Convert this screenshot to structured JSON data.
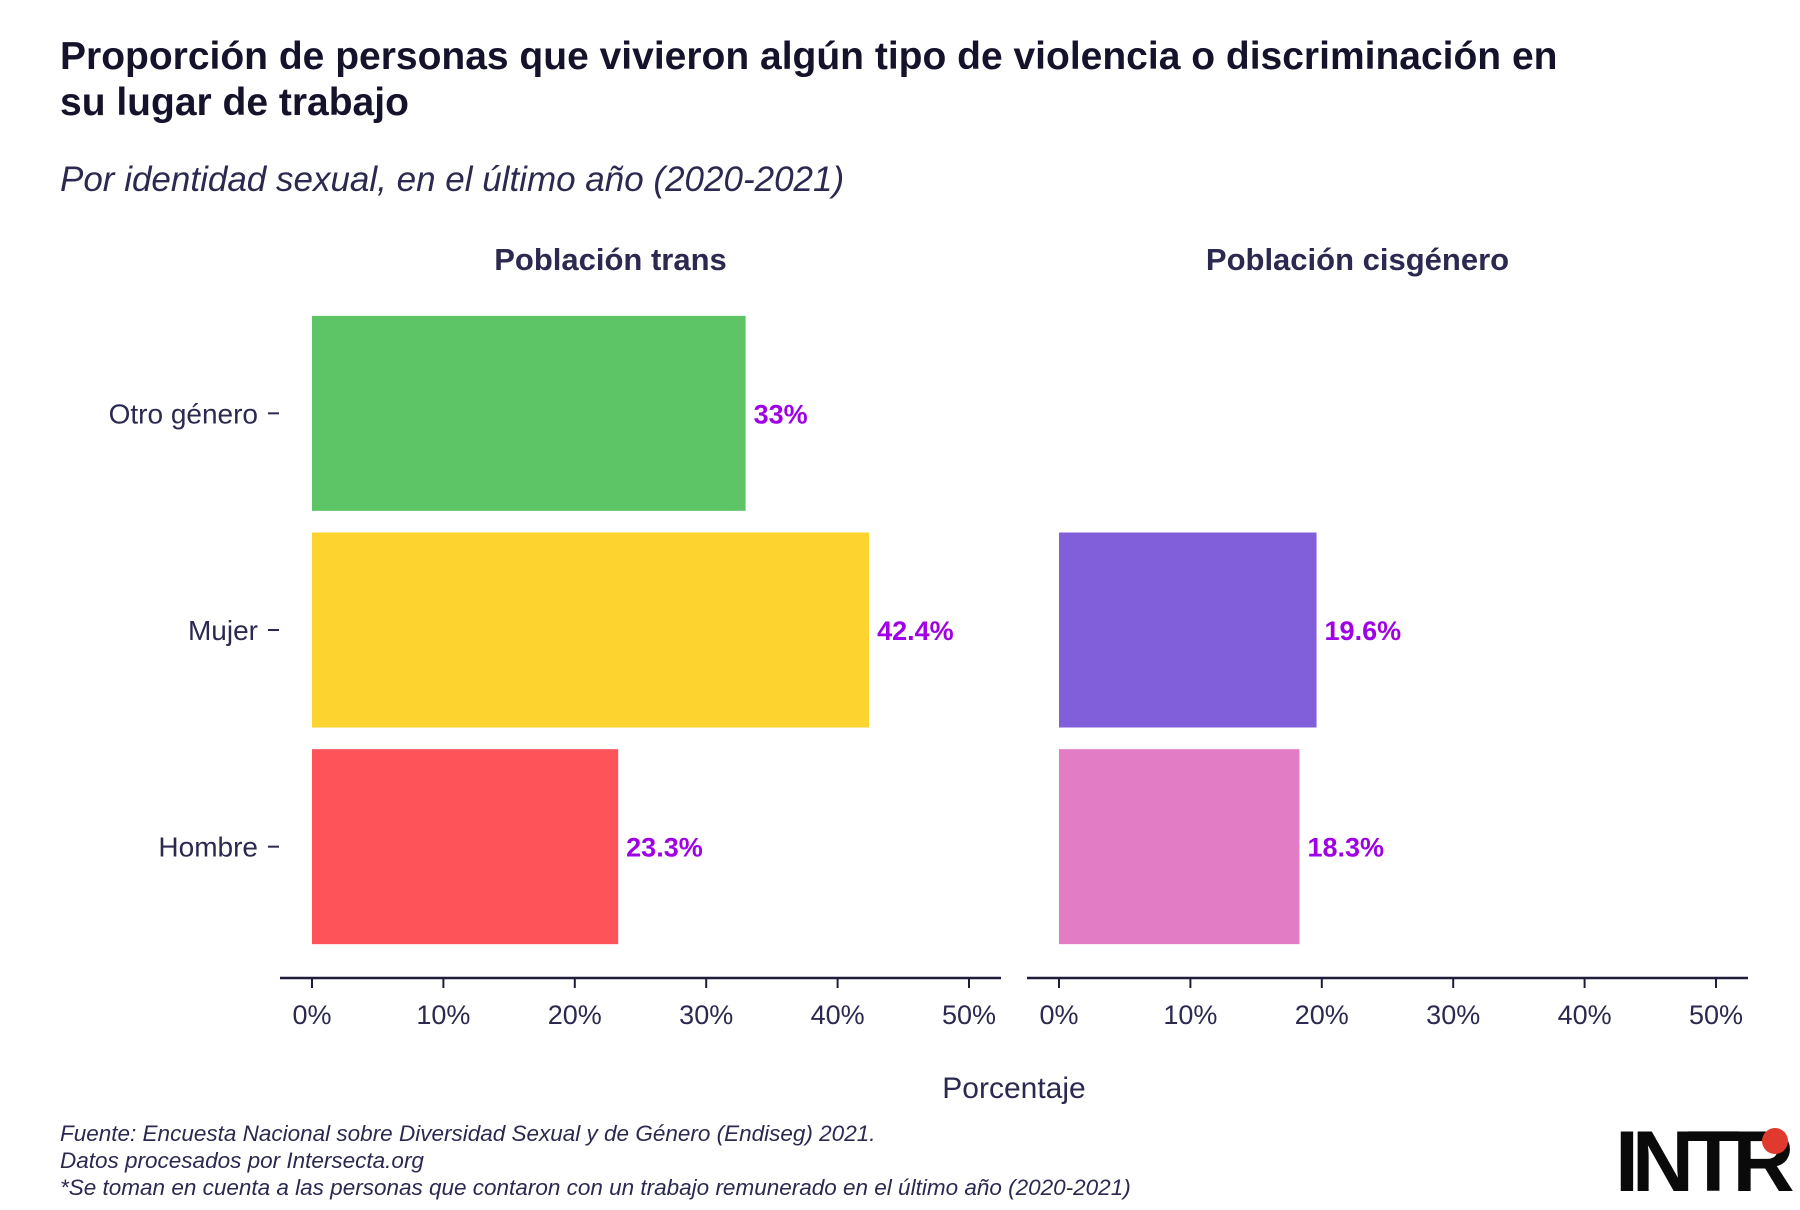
{
  "title": "Proporción de personas que vivieron algún tipo de violencia o discriminación en su lugar de trabajo",
  "subtitle": "Por identidad sexual, en el último año (2020-2021)",
  "footer": {
    "line1": "Fuente: Encuesta Nacional sobre Diversidad Sexual y de Género (Endiseg) 2021.",
    "line2": "Datos procesados por Intersecta.org",
    "line3": "*Se toman en cuenta a las personas que contaron con un trabajo remunerado en el último año (2020-2021)"
  },
  "logo": {
    "text": "INTR",
    "dot_color": "#e03a2f"
  },
  "chart_data": {
    "type": "bar",
    "orientation": "horizontal",
    "categories": [
      "Otro género",
      "Mujer",
      "Hombre"
    ],
    "xlabel": "Porcentaje",
    "xlim": [
      0,
      50
    ],
    "xticks": [
      "0%",
      "10%",
      "20%",
      "30%",
      "40%",
      "50%"
    ],
    "value_color": "#a000e6",
    "panels": [
      {
        "title": "Población trans",
        "bars": [
          {
            "category": "Otro género",
            "value": 33,
            "label": "33%",
            "color": "#5ec566"
          },
          {
            "category": "Mujer",
            "value": 42.4,
            "label": "42.4%",
            "color": "#fdd32f"
          },
          {
            "category": "Hombre",
            "value": 23.3,
            "label": "23.3%",
            "color": "#fe5459"
          }
        ]
      },
      {
        "title": "Población cisgénero",
        "bars": [
          {
            "category": "Mujer",
            "value": 19.6,
            "label": "19.6%",
            "color": "#825fda"
          },
          {
            "category": "Hombre",
            "value": 18.3,
            "label": "18.3%",
            "color": "#e17cc5"
          }
        ]
      }
    ]
  }
}
